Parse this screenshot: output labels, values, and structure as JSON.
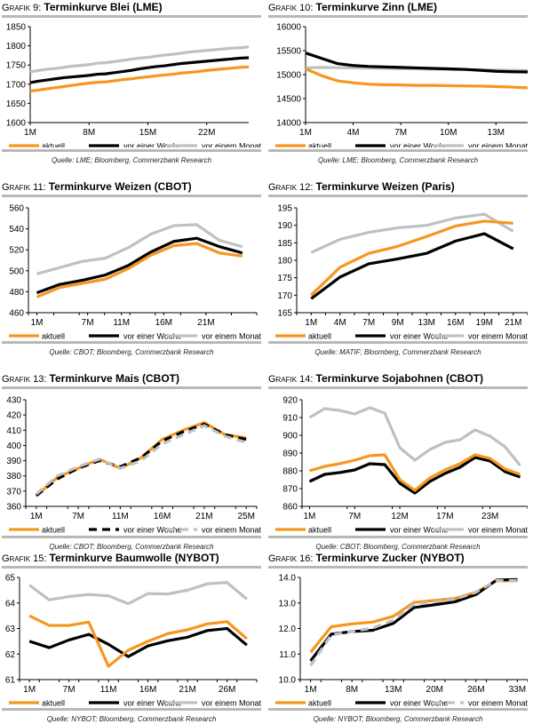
{
  "legend_labels": [
    "aktuell",
    "vor einer Woche",
    "vor einem Monat"
  ],
  "colors": {
    "aktuell": "#f7961e",
    "woche": "#000000",
    "monat": "#c0c0c0",
    "rule": "#b8b8b8"
  },
  "chart_data": [
    {
      "id": "g9",
      "type": "line",
      "prefix": "Grafik 9:",
      "title": "Terminkurve Blei (LME)",
      "source": "Quelle: LME; Bloomberg, Commerzbank Research",
      "ylim": [
        1600,
        1850
      ],
      "yticks": [
        1600,
        1650,
        1700,
        1750,
        1800,
        1850
      ],
      "ytick_labels": [
        "1600",
        "1650",
        "1700",
        "1750",
        "1800",
        "1850"
      ],
      "x": [
        1,
        2,
        3,
        4,
        5,
        6,
        7,
        8,
        9,
        10,
        11,
        12,
        13,
        14,
        15,
        16,
        17,
        18,
        19,
        20,
        21,
        22,
        23,
        24,
        25,
        26,
        27
      ],
      "xlim": [
        1,
        27
      ],
      "xticks": [
        1,
        8,
        15,
        22
      ],
      "xtick_labels": [
        "1M",
        "8M",
        "15M",
        "22M"
      ],
      "minor_ticks": [],
      "series": [
        {
          "name": "aktuell",
          "style": "solid",
          "values": [
            1682,
            1685,
            1688,
            1691,
            1694,
            1697,
            1700,
            1703,
            1705,
            1706,
            1709,
            1712,
            1714,
            1717,
            1719,
            1722,
            1724,
            1726,
            1729,
            1731,
            1733,
            1736,
            1738,
            1740,
            1742,
            1744,
            1745
          ]
        },
        {
          "name": "vor einer Woche",
          "style": "solid",
          "values": [
            1704,
            1708,
            1711,
            1714,
            1717,
            1719,
            1721,
            1723,
            1726,
            1727,
            1730,
            1733,
            1736,
            1740,
            1743,
            1746,
            1748,
            1751,
            1754,
            1756,
            1758,
            1760,
            1762,
            1764,
            1766,
            1768,
            1769
          ]
        },
        {
          "name": "vor einem Monat",
          "style": "solid",
          "values": [
            1732,
            1736,
            1739,
            1741,
            1744,
            1747,
            1749,
            1751,
            1755,
            1756,
            1759,
            1762,
            1765,
            1768,
            1770,
            1773,
            1776,
            1778,
            1781,
            1784,
            1786,
            1788,
            1790,
            1792,
            1794,
            1795,
            1797
          ]
        }
      ]
    },
    {
      "id": "g10",
      "type": "line",
      "prefix": "Grafik 10:",
      "title": "Terminkurve Zinn (LME)",
      "source": "Quelle: LME; Bloomberg, Commerzbank Research",
      "ylim": [
        14000,
        16000
      ],
      "yticks": [
        14000,
        14500,
        15000,
        15500,
        16000
      ],
      "ytick_labels": [
        "14000",
        "14500",
        "15000",
        "15500",
        "16000"
      ],
      "x": [
        1,
        2,
        3,
        4,
        5,
        6,
        7,
        8,
        9,
        10,
        11,
        12,
        13,
        14,
        15
      ],
      "xlim": [
        1,
        15
      ],
      "xticks": [
        1,
        4,
        7,
        10,
        13
      ],
      "xtick_labels": [
        "1M",
        "4M",
        "7M",
        "10M",
        "13M"
      ],
      "minor_ticks": [],
      "series": [
        {
          "name": "aktuell",
          "style": "solid",
          "values": [
            15120,
            14980,
            14870,
            14830,
            14800,
            14790,
            14785,
            14775,
            14775,
            14770,
            14765,
            14760,
            14750,
            14740,
            14725
          ]
        },
        {
          "name": "vor einer Woche",
          "style": "solid",
          "values": [
            15450,
            15340,
            15230,
            15190,
            15170,
            15160,
            15150,
            15140,
            15130,
            15120,
            15110,
            15090,
            15070,
            15060,
            15055
          ]
        },
        {
          "name": "vor einem Monat",
          "style": "solid",
          "values": [
            15140,
            15150,
            15145,
            15140,
            15135,
            15130,
            15125,
            15120,
            15115,
            15110,
            15105,
            15100,
            15095,
            15090,
            15085
          ]
        }
      ]
    },
    {
      "id": "g11",
      "type": "line",
      "prefix": "Grafik 11:",
      "title": "Terminkurve Weizen (CBOT)",
      "source": "Quelle: CBOT; Bloomberg, Commerzbank Research",
      "ylim": [
        460,
        560
      ],
      "yticks": [
        460,
        480,
        500,
        520,
        540,
        560
      ],
      "ytick_labels": [
        "460",
        "480",
        "500",
        "520",
        "540",
        "560"
      ],
      "x": [
        1,
        4,
        7,
        10,
        13,
        16,
        19,
        22,
        25
      ],
      "xlim": [
        0,
        27
      ],
      "xticks": [
        1,
        7,
        11,
        16,
        21
      ],
      "xtick_labels": [
        "1M",
        "7M",
        "11M",
        "16M",
        "21M"
      ],
      "minor_ticks": [
        0,
        3,
        6,
        9,
        12,
        15,
        18,
        21,
        24,
        27
      ],
      "series": [
        {
          "name": "aktuell",
          "style": "solid",
          "values": [
            475,
            484,
            488,
            492,
            502,
            515,
            524,
            526,
            517,
            514
          ]
        },
        {
          "name": "vor einer Woche",
          "style": "solid",
          "values": [
            479,
            487,
            491,
            496,
            505,
            518,
            528,
            531,
            523,
            517
          ]
        },
        {
          "name": "vor einem Monat",
          "style": "solid",
          "values": [
            497,
            503,
            509,
            512,
            522,
            535,
            543,
            544,
            529,
            523
          ]
        }
      ],
      "x_override": [
        1,
        3.7,
        6.4,
        9.1,
        11.8,
        14.5,
        17.2,
        19.9,
        22.6,
        25.3
      ]
    },
    {
      "id": "g12",
      "type": "line",
      "prefix": "Grafik 12:",
      "title": "Terminkurve Weizen (Paris)",
      "source": "Quelle: MATIF; Bloomberg, Commerzbank Research",
      "ylim": [
        165,
        195
      ],
      "yticks": [
        165,
        170,
        175,
        180,
        185,
        190,
        195
      ],
      "ytick_labels": [
        "165",
        "170",
        "175",
        "180",
        "185",
        "190",
        "195"
      ],
      "x": [
        0,
        1,
        2,
        3,
        4,
        5,
        6,
        7
      ],
      "xlim": [
        -0.5,
        7.5
      ],
      "xticks": [
        0,
        1,
        2,
        3,
        4,
        5,
        6,
        7
      ],
      "xtick_labels": [
        "1M",
        "4M",
        "7M",
        "9M",
        "13M",
        "16M",
        "19M",
        "21M"
      ],
      "minor_ticks": [
        -0.5,
        0.5,
        1.5,
        2.5,
        3.5,
        4.5,
        5.5,
        6.5,
        7.5
      ],
      "series": [
        {
          "name": "aktuell",
          "style": "solid",
          "values": [
            170,
            178,
            182,
            184,
            186.8,
            189.8,
            191.2,
            190.6
          ]
        },
        {
          "name": "vor einer Woche",
          "style": "solid",
          "values": [
            169,
            175.2,
            179,
            180.4,
            182,
            185.5,
            187.6,
            183.3
          ]
        },
        {
          "name": "vor einem Monat",
          "style": "solid",
          "values": [
            182.2,
            186,
            188,
            189.3,
            190,
            192.1,
            193.2,
            188.3
          ]
        }
      ]
    },
    {
      "id": "g13",
      "type": "line",
      "prefix": "Grafik 13:",
      "title": "Terminkurve Mais (CBOT)",
      "source": "Quelle: CBOT; Bloomberg, Commerzbank Research",
      "ylim": [
        360,
        430
      ],
      "yticks": [
        360,
        370,
        380,
        390,
        400,
        410,
        420,
        430
      ],
      "ytick_labels": [
        "360",
        "370",
        "380",
        "390",
        "400",
        "410",
        "420",
        "430"
      ],
      "x": [
        0,
        1,
        2,
        3,
        4,
        5,
        6,
        7,
        8,
        9,
        10
      ],
      "xlim": [
        -0.5,
        10.5
      ],
      "xticks": [
        0,
        2,
        4,
        6,
        8,
        10
      ],
      "xtick_labels": [
        "1M",
        "7M",
        "11M",
        "16M",
        "21M",
        "25M"
      ],
      "minor_ticks": [
        -0.5,
        0.5,
        1.5,
        2.5,
        3.5,
        4.5,
        5.5,
        6.5,
        7.5,
        8.5,
        9.5,
        10.5
      ],
      "series": [
        {
          "name": "aktuell",
          "style": "solid",
          "values": [
            367,
            379,
            385,
            391,
            385,
            392,
            404,
            410,
            415,
            407,
            405
          ]
        },
        {
          "name": "vor einer Woche",
          "style": "dashed",
          "values": [
            367,
            378,
            385,
            390,
            386,
            392,
            403,
            409,
            414,
            407,
            404
          ]
        },
        {
          "name": "vor einem Monat",
          "style": "dashed",
          "values": [
            368,
            380,
            386,
            391,
            385,
            390,
            401,
            407,
            413,
            406,
            402
          ]
        }
      ]
    },
    {
      "id": "g14",
      "type": "line",
      "prefix": "Grafik 14:",
      "title": "Terminkurve Sojabohnen (CBOT)",
      "source": "Quelle: CBOT; Bloomberg, Commerzbank Research",
      "ylim": [
        860,
        920
      ],
      "yticks": [
        860,
        870,
        880,
        890,
        900,
        910,
        920
      ],
      "ytick_labels": [
        "860",
        "870",
        "880",
        "890",
        "900",
        "910",
        "920"
      ],
      "x": [
        0,
        1,
        2,
        3,
        4,
        5,
        6,
        7,
        8,
        9,
        10,
        11,
        12,
        13,
        14
      ],
      "xlim": [
        -0.5,
        14.5
      ],
      "xticks": [
        0,
        3,
        6,
        9,
        12
      ],
      "xtick_labels": [
        "1M",
        "7M",
        "12M",
        "17M",
        "23M"
      ],
      "minor_ticks": [
        -0.5,
        2.5,
        5.5,
        8.5,
        11.5,
        14.5
      ],
      "series": [
        {
          "name": "aktuell",
          "style": "solid",
          "values": [
            880,
            882.5,
            884,
            886,
            888.5,
            889,
            875,
            869,
            876,
            880.5,
            884,
            889,
            887,
            881,
            878
          ]
        },
        {
          "name": "vor einer Woche",
          "style": "solid",
          "values": [
            874,
            878,
            879,
            880.5,
            884,
            883.5,
            873,
            867.5,
            874,
            878.5,
            882,
            887.5,
            885.5,
            879.5,
            876.5
          ]
        },
        {
          "name": "vor einem Monat",
          "style": "solid",
          "values": [
            910,
            915,
            914,
            912,
            915.5,
            912.5,
            893,
            886,
            892,
            896,
            897.5,
            903,
            899.5,
            893.5,
            883
          ]
        }
      ]
    },
    {
      "id": "g15",
      "type": "line",
      "prefix": "Grafik 15:",
      "title": "Terminkurve Baumwolle (NYBOT)",
      "source": "Quelle: NYBOT; Bloomberg, Commerzbank Research",
      "ylim": [
        61,
        65
      ],
      "yticks": [
        61,
        62,
        63,
        64,
        65
      ],
      "ytick_labels": [
        "61",
        "62",
        "63",
        "64",
        "65"
      ],
      "x": [
        0,
        1,
        2,
        3,
        4,
        5,
        6,
        7,
        8,
        9,
        10,
        11
      ],
      "xlim": [
        -0.5,
        11.5
      ],
      "xticks": [
        0,
        2,
        4,
        6,
        8,
        10
      ],
      "xtick_labels": [
        "1M",
        "7M",
        "11M",
        "16M",
        "21M",
        "26M"
      ],
      "minor_ticks": [
        -0.5,
        0.5,
        1.5,
        2.5,
        3.5,
        4.5,
        5.5,
        6.5,
        7.5,
        8.5,
        9.5,
        10.5,
        11.5
      ],
      "series": [
        {
          "name": "aktuell",
          "style": "solid",
          "values": [
            63.5,
            63.12,
            63.12,
            63.25,
            61.52,
            62.15,
            62.5,
            62.8,
            62.95,
            63.18,
            63.27,
            62.6
          ]
        },
        {
          "name": "vor einer Woche",
          "style": "solid",
          "values": [
            62.5,
            62.25,
            62.55,
            62.77,
            62.38,
            61.9,
            62.32,
            62.52,
            62.66,
            62.92,
            63.0,
            62.35
          ]
        },
        {
          "name": "vor einem Monat",
          "style": "solid",
          "values": [
            64.7,
            64.12,
            64.25,
            64.33,
            64.28,
            63.97,
            64.37,
            64.35,
            64.5,
            64.75,
            64.8,
            64.15
          ]
        }
      ]
    },
    {
      "id": "g16",
      "type": "line",
      "prefix": "Grafik 16:",
      "title": "Terminkurve Zucker (NYBOT)",
      "source": "Quelle: NYBOT; Bloomberg, Commerzbank Research",
      "ylim": [
        10.0,
        14.0
      ],
      "yticks": [
        10.0,
        11.0,
        12.0,
        13.0,
        14.0
      ],
      "ytick_labels": [
        "10.0",
        "11.0",
        "12.0",
        "13.0",
        "14.0"
      ],
      "x": [
        0,
        1,
        2,
        3,
        4,
        5,
        6,
        7,
        8,
        9,
        10
      ],
      "xlim": [
        -0.5,
        10.5
      ],
      "xticks": [
        0,
        2,
        4,
        6,
        8,
        10
      ],
      "xtick_labels": [
        "1M",
        "8M",
        "13M",
        "20M",
        "26M",
        "33M"
      ],
      "minor_ticks": [
        -0.5,
        0.5,
        1.5,
        2.5,
        3.5,
        4.5,
        5.5,
        6.5,
        7.5,
        8.5,
        9.5,
        10.5
      ],
      "series": [
        {
          "name": "aktuell",
          "style": "solid",
          "values": [
            11.07,
            12.07,
            12.18,
            12.25,
            12.48,
            13.02,
            13.1,
            13.18,
            13.42,
            13.87,
            13.87
          ]
        },
        {
          "name": "vor einer Woche",
          "style": "solid",
          "values": [
            10.73,
            11.78,
            11.88,
            11.93,
            12.2,
            12.82,
            12.93,
            13.05,
            13.33,
            13.9,
            13.92
          ]
        },
        {
          "name": "vor einem Monat",
          "style": "dashed",
          "values": [
            10.55,
            11.75,
            11.88,
            12.02,
            12.32,
            12.95,
            13.05,
            13.15,
            13.42,
            13.88,
            13.88
          ]
        }
      ]
    }
  ]
}
